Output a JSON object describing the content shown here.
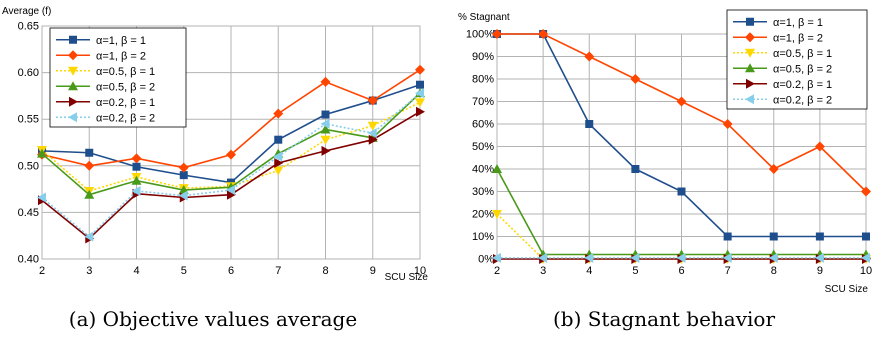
{
  "chart_data": [
    {
      "type": "line",
      "ylabel": "Average (f)",
      "xlabel": "SCU Size",
      "x": [
        2,
        3,
        4,
        5,
        6,
        7,
        8,
        9,
        10
      ],
      "ylim": [
        0.4,
        0.65
      ],
      "yticks": [
        0.4,
        0.45,
        0.5,
        0.55,
        0.6,
        0.65
      ],
      "ytick_labels": [
        "0.40",
        "0.45",
        "0.50",
        "0.55",
        "0.60",
        "0.65"
      ],
      "grid": true,
      "legend_position": "top-left",
      "caption": "(a) Objective values average",
      "series": [
        {
          "name": "α=1, β = 1",
          "color": "#1f4e8c",
          "marker": "square",
          "dashed": false,
          "values": [
            0.516,
            0.514,
            0.499,
            0.49,
            0.482,
            0.528,
            0.555,
            0.57,
            0.587
          ]
        },
        {
          "name": "α=1, β = 2",
          "color": "#ff4500",
          "marker": "diamond",
          "dashed": false,
          "values": [
            0.512,
            0.5,
            0.508,
            0.498,
            0.512,
            0.556,
            0.59,
            0.57,
            0.603
          ]
        },
        {
          "name": "α=0.5, β = 1",
          "color": "#ffd700",
          "marker": "tri-down",
          "dashed": true,
          "values": [
            0.517,
            0.473,
            0.488,
            0.476,
            0.478,
            0.495,
            0.528,
            0.543,
            0.568
          ]
        },
        {
          "name": "α=0.5, β = 2",
          "color": "#4a9a1a",
          "marker": "tri-up",
          "dashed": false,
          "values": [
            0.513,
            0.469,
            0.484,
            0.474,
            0.477,
            0.513,
            0.539,
            0.53,
            0.578
          ]
        },
        {
          "name": "α=0.2, β = 1",
          "color": "#800000",
          "marker": "tri-right",
          "dashed": false,
          "values": [
            0.463,
            0.422,
            0.47,
            0.466,
            0.469,
            0.503,
            0.516,
            0.528,
            0.558
          ]
        },
        {
          "name": "α=0.2, β = 2",
          "color": "#87ceeb",
          "marker": "tri-left",
          "dashed": true,
          "values": [
            0.466,
            0.424,
            0.473,
            0.468,
            0.474,
            0.51,
            0.545,
            0.535,
            0.578
          ]
        }
      ]
    },
    {
      "type": "line",
      "ylabel": "% Stagnant",
      "xlabel": "SCU Size",
      "x": [
        2,
        3,
        4,
        5,
        6,
        7,
        8,
        9,
        10
      ],
      "ylim": [
        0,
        100
      ],
      "yticks": [
        0,
        10,
        20,
        30,
        40,
        50,
        60,
        70,
        80,
        90,
        100
      ],
      "ytick_labels": [
        "0%",
        "10%",
        "20%",
        "30%",
        "40%",
        "50%",
        "60%",
        "70%",
        "80%",
        "90%",
        "100%"
      ],
      "grid": true,
      "legend_position": "top-right",
      "caption": "(b) Stagnant behavior",
      "series": [
        {
          "name": "α=1, β = 1",
          "color": "#1f4e8c",
          "marker": "square",
          "dashed": false,
          "values": [
            100,
            100,
            60,
            40,
            30,
            10,
            10,
            10,
            10
          ]
        },
        {
          "name": "α=1, β = 2",
          "color": "#ff4500",
          "marker": "diamond",
          "dashed": false,
          "values": [
            100,
            100,
            90,
            80,
            70,
            60,
            40,
            50,
            30
          ]
        },
        {
          "name": "α=0.5, β = 1",
          "color": "#ffd700",
          "marker": "tri-down",
          "dashed": true,
          "values": [
            20,
            0,
            0,
            0,
            0,
            0,
            0,
            0,
            0
          ]
        },
        {
          "name": "α=0.5, β = 2",
          "color": "#4a9a1a",
          "marker": "tri-up",
          "dashed": false,
          "values": [
            40,
            2,
            2,
            2,
            2,
            2,
            2,
            2,
            2
          ]
        },
        {
          "name": "α=0.2, β = 1",
          "color": "#800000",
          "marker": "tri-right",
          "dashed": false,
          "values": [
            0,
            0,
            0,
            0,
            0,
            0,
            0,
            0,
            0
          ]
        },
        {
          "name": "α=0.2, β = 2",
          "color": "#87ceeb",
          "marker": "tri-left",
          "dashed": true,
          "values": [
            0.5,
            0.5,
            0.5,
            0.5,
            0.5,
            0.5,
            0.5,
            0.5,
            0.5
          ]
        }
      ]
    }
  ]
}
